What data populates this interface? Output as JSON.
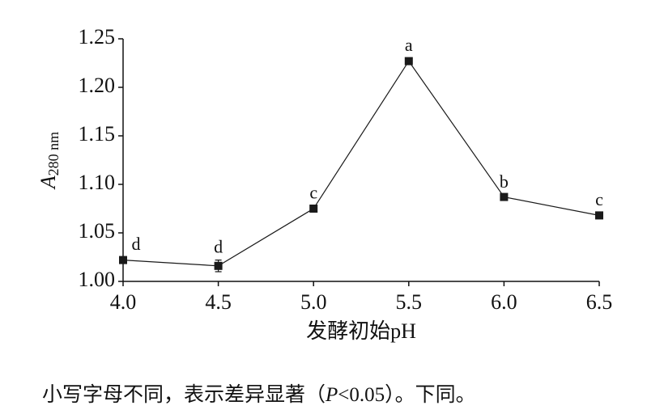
{
  "chart_data": {
    "type": "line",
    "x": [
      4.0,
      4.5,
      5.0,
      5.5,
      6.0,
      6.5
    ],
    "values": [
      1.022,
      1.016,
      1.075,
      1.227,
      1.087,
      1.068
    ],
    "errors": [
      0.003,
      0.006,
      0.003,
      0.003,
      0.002,
      0.003
    ],
    "significance_letters": [
      "d",
      "d",
      "c",
      "a",
      "b",
      "c"
    ],
    "color": "#1a1a1a",
    "xlim": [
      4.0,
      6.5
    ],
    "xticks": [
      {
        "value": 4,
        "label": "4.0"
      },
      {
        "value": 4.5,
        "label": "4.5"
      },
      {
        "value": 5,
        "label": "5.0"
      },
      {
        "value": 5.5,
        "label": "5.5"
      },
      {
        "value": 6,
        "label": "6.0"
      },
      {
        "value": 6.5,
        "label": "6.5"
      }
    ],
    "ylim": [
      1.0,
      1.25
    ],
    "yticks": [
      {
        "value": 1,
        "label": "1.00"
      },
      {
        "value": 1.05,
        "label": "1.05"
      },
      {
        "value": 1.1,
        "label": "1.10"
      },
      {
        "value": 1.15,
        "label": "1.15"
      },
      {
        "value": 1.2,
        "label": "1.20"
      },
      {
        "value": 1.25,
        "label": "1.25"
      }
    ],
    "xlabel": "发酵初始pH",
    "ylabel": {
      "main": "A",
      "sub": "280 nm"
    },
    "caption": [
      "小写字母不同，表示差异显著（",
      "P",
      "<0.05）。下同。"
    ]
  }
}
